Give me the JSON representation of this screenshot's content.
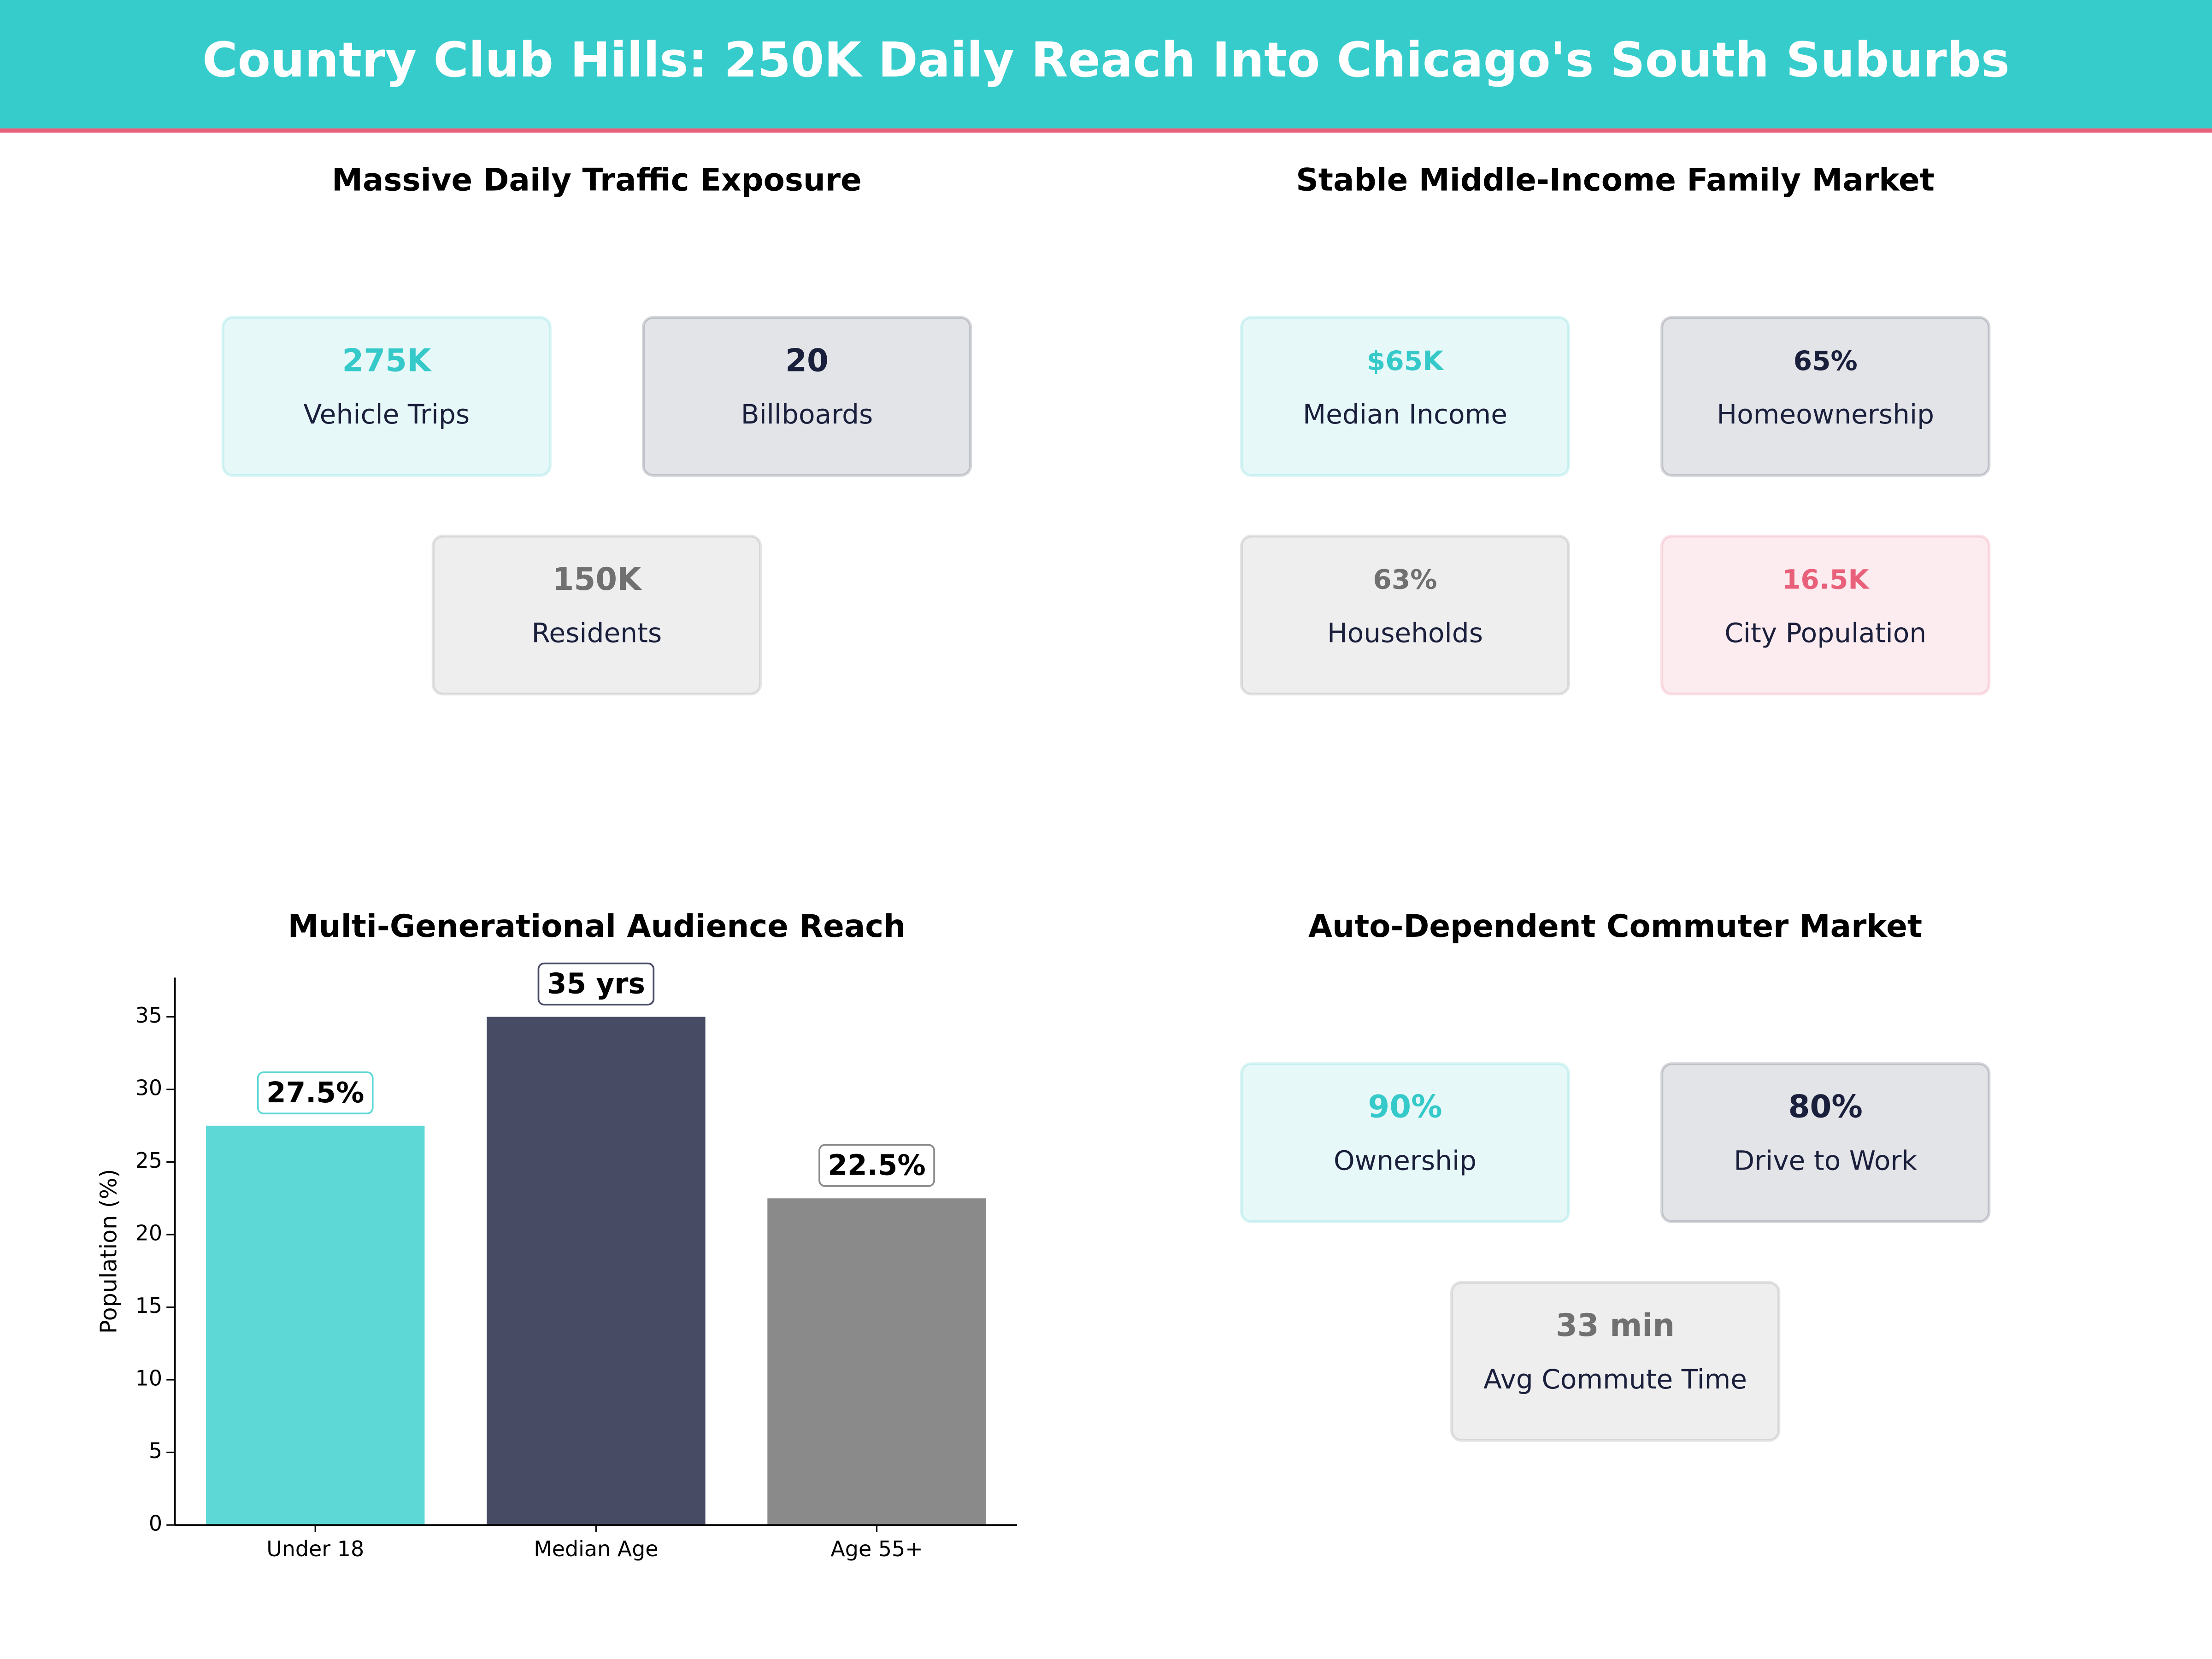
{
  "title": "Country Club Hills: 250K Daily Reach Into Chicago's South Suburbs",
  "panels": [
    {
      "title": "Massive Daily Traffic Exposure",
      "cards": [
        {
          "value": "275K",
          "label": "Vehicle Trips",
          "color": "#36c9c9"
        },
        {
          "value": "20",
          "label": "Billboards",
          "color": "#1a1f3c"
        },
        {
          "value": "150K",
          "label": "Residents",
          "color": "#707070"
        }
      ]
    },
    {
      "title": "Stable Middle-Income Family Market",
      "cards": [
        {
          "value": "$65K",
          "label": "Median Income",
          "color": "#36c9c9"
        },
        {
          "value": "65%",
          "label": "Homeownership",
          "color": "#1a1f3c"
        },
        {
          "value": "63%",
          "label": "Households",
          "color": "#707070"
        },
        {
          "value": "16.5K",
          "label": "City Population",
          "color": "#e8607a"
        }
      ]
    },
    {
      "title": "Auto-Dependent Commuter Market",
      "cards": [
        {
          "value": "90%",
          "label": "Ownership",
          "color": "#36c9c9"
        },
        {
          "value": "80%",
          "label": "Drive to Work",
          "color": "#1a1f3c"
        },
        {
          "value": "33 min",
          "label": "Avg Commute Time",
          "color": "#707070"
        }
      ]
    }
  ],
  "chart_data": {
    "type": "bar",
    "title": "Multi-Generational Audience Reach",
    "ylabel": "Population (%)",
    "categories": [
      "Under 18",
      "Median Age",
      "Age 55+"
    ],
    "values": [
      27.5,
      35,
      22.5
    ],
    "value_labels": [
      "27.5%",
      "35  yrs",
      "22.5%"
    ],
    "colors": [
      "#5dd8d6",
      "#474b63",
      "#8a8a8a"
    ],
    "ylim": [
      0,
      37.7
    ],
    "yticks": [
      0,
      5,
      10,
      15,
      20,
      25,
      30,
      35
    ]
  }
}
